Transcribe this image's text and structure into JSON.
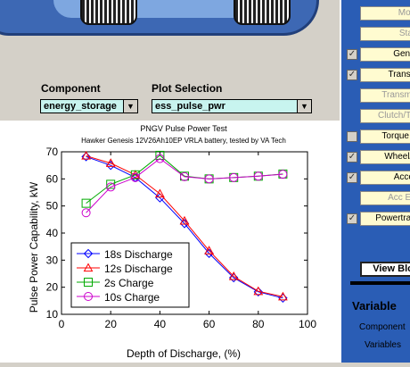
{
  "component": {
    "label": "Component",
    "value": "energy_storage"
  },
  "plot_selection": {
    "label": "Plot Selection",
    "value": "ess_pulse_pwr"
  },
  "right_panel": {
    "buttons": [
      {
        "label": "Moto",
        "checkbox": false,
        "dim": true
      },
      {
        "label": "Start",
        "checkbox": false,
        "dim": true
      },
      {
        "label": "Gener",
        "checkbox": true,
        "checked": true,
        "dim": false
      },
      {
        "label": "Transm",
        "checkbox": true,
        "checked": true,
        "dim": false
      },
      {
        "label": "Transmis",
        "checkbox": false,
        "dim": true
      },
      {
        "label": "Clutch/Tor",
        "checkbox": false,
        "dim": true
      },
      {
        "label": "Torque C",
        "checkbox": true,
        "checked": false,
        "dim": false
      },
      {
        "label": "Wheel/A",
        "checkbox": true,
        "checked": true,
        "dim": false
      },
      {
        "label": "Acces",
        "checkbox": true,
        "checked": true,
        "dim": false
      },
      {
        "label": "Acc Ele",
        "checkbox": false,
        "dim": true
      },
      {
        "label": "Powertrain",
        "checkbox": true,
        "checked": true,
        "dim": false
      }
    ],
    "view_block": "View Bloc",
    "variables_title": "Variable",
    "component_label": "Component",
    "variables_label": "Variables"
  },
  "chart_data": {
    "type": "line",
    "title": "PNGV Pulse Power Test",
    "subtitle": "Hawker Genesis 12V26Ah10EP VRLA battery, tested by VA Tech",
    "xlabel": "Depth of Discharge, (%)",
    "ylabel": "Pulse Power Capability, kW",
    "xlim": [
      0,
      100
    ],
    "ylim": [
      10,
      70
    ],
    "xticks": [
      0,
      20,
      40,
      60,
      80,
      100
    ],
    "yticks": [
      10,
      20,
      30,
      40,
      50,
      60,
      70
    ],
    "legend_position": "bottom-left",
    "series": [
      {
        "name": "18s Discharge",
        "color": "#0000ff",
        "marker": "diamond",
        "x": [
          10,
          20,
          30,
          40,
          50,
          60,
          70,
          80,
          90
        ],
        "y": [
          68.2,
          65.0,
          60.5,
          53.0,
          43.5,
          32.5,
          23.5,
          18.3,
          16.0
        ]
      },
      {
        "name": "12s Discharge",
        "color": "#ff0000",
        "marker": "triangle",
        "x": [
          10,
          20,
          30,
          40,
          50,
          60,
          70,
          80,
          90
        ],
        "y": [
          68.5,
          65.8,
          61.5,
          54.5,
          44.5,
          33.5,
          24.0,
          18.5,
          16.5
        ]
      },
      {
        "name": "2s Charge",
        "color": "#00aa00",
        "marker": "square",
        "x": [
          10,
          20,
          30,
          40,
          50,
          60,
          70,
          80,
          90
        ],
        "y": [
          51.0,
          58.0,
          61.5,
          68.7,
          61.0,
          60.0,
          60.5,
          61.0,
          61.8
        ]
      },
      {
        "name": "10s Charge",
        "color": "#cc00cc",
        "marker": "circle",
        "x": [
          10,
          20,
          30,
          40,
          50,
          60,
          70,
          80,
          90
        ],
        "y": [
          47.5,
          57.0,
          60.5,
          67.5,
          60.8,
          60.0,
          60.5,
          61.0,
          61.7
        ]
      }
    ]
  }
}
